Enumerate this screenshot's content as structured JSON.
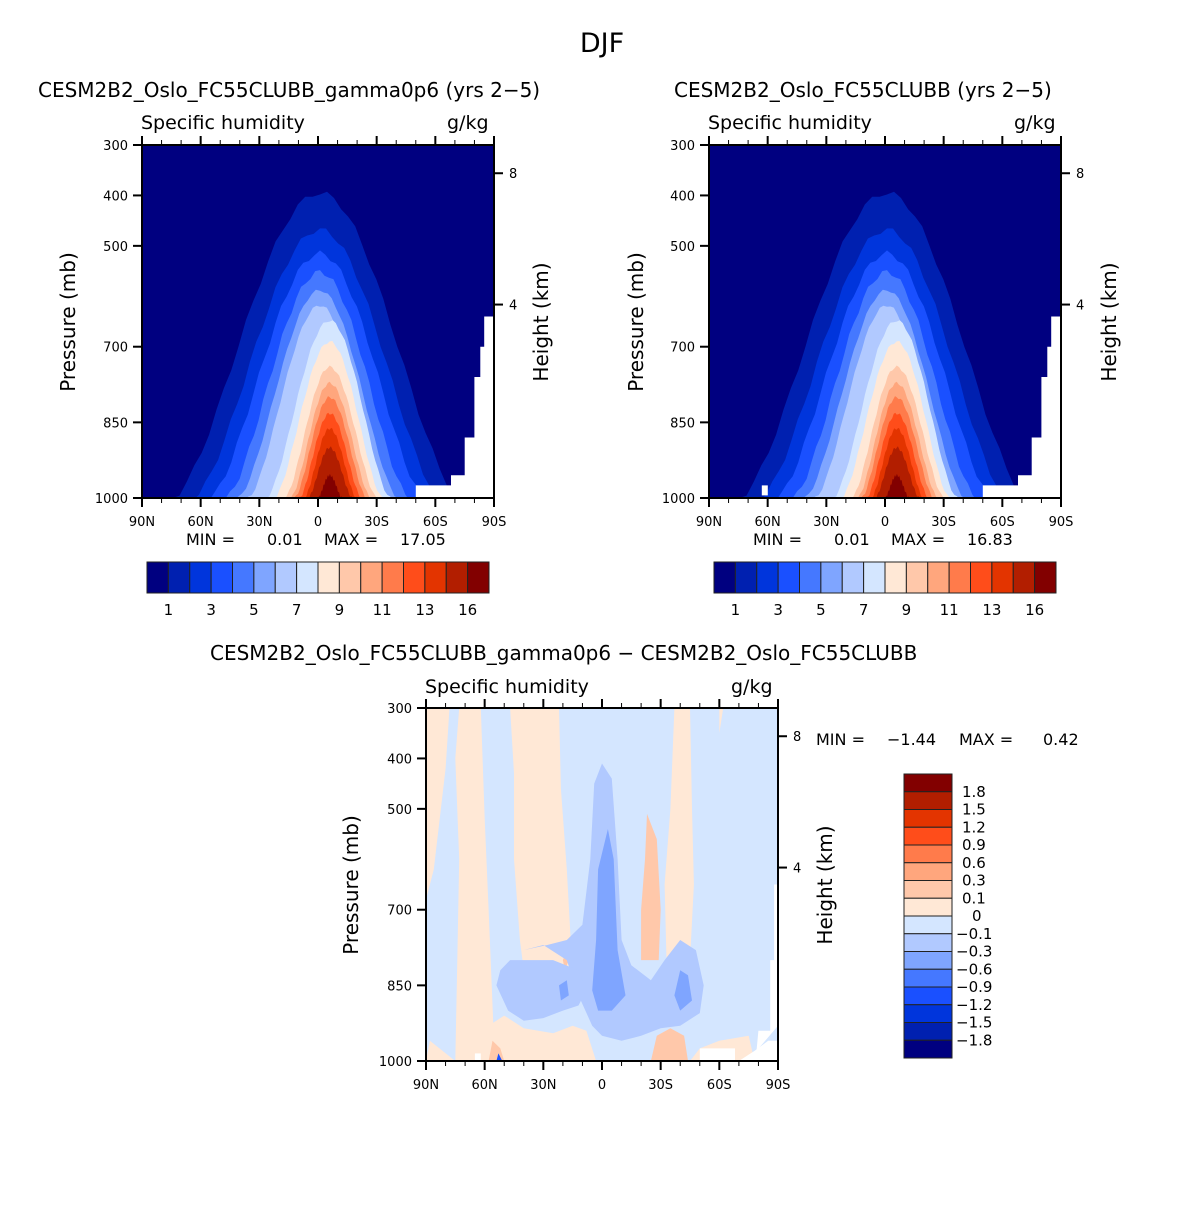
{
  "figure_title": "DJF",
  "chart_data": [
    {
      "type": "heatmap",
      "subtype": "filled-contour",
      "title": "CESM2B2_Oslo_FC55CLUBB_gamma0p6 (yrs 2−5)",
      "left_subtitle": "Specific humidity",
      "right_subtitle": "g/kg",
      "xlabel": "",
      "ylabel": "Pressure (mb)",
      "y2label": "Height (km)",
      "x_ticks": [
        "90N",
        "60N",
        "30N",
        "0",
        "30S",
        "60S",
        "90S"
      ],
      "x_range": [
        90,
        -90
      ],
      "y_ticks": [
        300,
        400,
        500,
        700,
        850,
        1000
      ],
      "y_range": [
        300,
        1000
      ],
      "y2_ticks": [
        8,
        4
      ],
      "min_label": "MIN =",
      "min_value": "0.01",
      "max_label": "MAX =",
      "max_value": "17.05",
      "colorbar": {
        "orientation": "horizontal",
        "levels": [
          1,
          2,
          3,
          4,
          5,
          6,
          7,
          8,
          9,
          10,
          11,
          12,
          13,
          14,
          16
        ],
        "labels": [
          "1",
          "3",
          "5",
          "7",
          "9",
          "11",
          "13",
          "16"
        ],
        "colors": [
          "#000080",
          "#0020b0",
          "#0035dc",
          "#1a50ff",
          "#4578ff",
          "#7fa5ff",
          "#b1c9ff",
          "#d4e6ff",
          "#ffe8d6",
          "#ffc8aa",
          "#ffa67d",
          "#ff7b4b",
          "#ff4d1a",
          "#e33400",
          "#b21e00",
          "#820000"
        ]
      },
      "peak_location": {
        "lat": 0,
        "pressure": 1000,
        "value_approx": 17
      }
    },
    {
      "type": "heatmap",
      "subtype": "filled-contour",
      "title": "CESM2B2_Oslo_FC55CLUBB (yrs 2−5)",
      "left_subtitle": "Specific humidity",
      "right_subtitle": "g/kg",
      "xlabel": "",
      "ylabel": "Pressure (mb)",
      "y2label": "Height (km)",
      "x_ticks": [
        "90N",
        "60N",
        "30N",
        "0",
        "30S",
        "60S",
        "90S"
      ],
      "x_range": [
        90,
        -90
      ],
      "y_ticks": [
        300,
        400,
        500,
        700,
        850,
        1000
      ],
      "y_range": [
        300,
        1000
      ],
      "y2_ticks": [
        8,
        4
      ],
      "min_label": "MIN =",
      "min_value": "0.01",
      "max_label": "MAX =",
      "max_value": "16.83",
      "colorbar": {
        "orientation": "horizontal",
        "levels": [
          1,
          2,
          3,
          4,
          5,
          6,
          7,
          8,
          9,
          10,
          11,
          12,
          13,
          14,
          16
        ],
        "labels": [
          "1",
          "3",
          "5",
          "7",
          "9",
          "11",
          "13",
          "16"
        ],
        "colors": [
          "#000080",
          "#0020b0",
          "#0035dc",
          "#1a50ff",
          "#4578ff",
          "#7fa5ff",
          "#b1c9ff",
          "#d4e6ff",
          "#ffe8d6",
          "#ffc8aa",
          "#ffa67d",
          "#ff7b4b",
          "#ff4d1a",
          "#e33400",
          "#b21e00",
          "#820000"
        ]
      },
      "peak_location": {
        "lat": 0,
        "pressure": 1000,
        "value_approx": 17
      }
    },
    {
      "type": "heatmap",
      "subtype": "filled-contour-difference",
      "title": "CESM2B2_Oslo_FC55CLUBB_gamma0p6 − CESM2B2_Oslo_FC55CLUBB",
      "left_subtitle": "Specific humidity",
      "right_subtitle": "g/kg",
      "xlabel": "",
      "ylabel": "Pressure (mb)",
      "y2label": "Height (km)",
      "x_ticks": [
        "90N",
        "60N",
        "30N",
        "0",
        "30S",
        "60S",
        "90S"
      ],
      "x_range": [
        90,
        -90
      ],
      "y_ticks": [
        300,
        400,
        500,
        700,
        850,
        1000
      ],
      "y_range": [
        300,
        1000
      ],
      "y2_ticks": [
        8,
        4
      ],
      "min_label": "MIN =",
      "min_value": "−1.44",
      "max_label": "MAX =",
      "max_value": "0.42",
      "colorbar": {
        "orientation": "vertical",
        "labels_top_to_bottom": [
          "1.8",
          "1.5",
          "1.2",
          "0.9",
          "0.6",
          "0.3",
          "0.1",
          "0",
          "−0.1",
          "−0.3",
          "−0.6",
          "−0.9",
          "−1.2",
          "−1.5",
          "−1.8"
        ],
        "colors_top_to_bottom": [
          "#820000",
          "#b21e00",
          "#e33400",
          "#ff4d1a",
          "#ff7b4b",
          "#ffa67d",
          "#ffc8aa",
          "#ffe8d6",
          "#d4e6ff",
          "#b1c9ff",
          "#7fa5ff",
          "#4578ff",
          "#1a50ff",
          "#0035dc",
          "#0020b0",
          "#000080"
        ]
      }
    }
  ]
}
